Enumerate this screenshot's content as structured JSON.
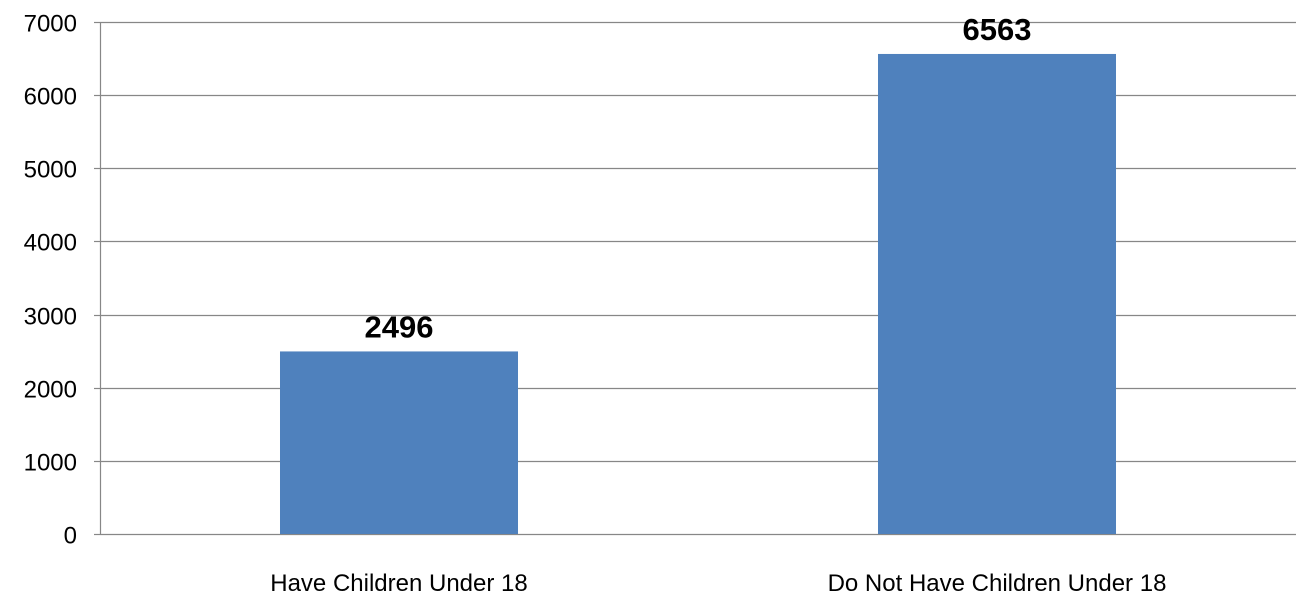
{
  "chart_data": {
    "type": "bar",
    "categories": [
      "Have Children Under 18",
      "Do Not Have Children Under 18"
    ],
    "values": [
      2496,
      6563
    ],
    "data_labels": [
      "2496",
      "6563"
    ],
    "yticks": [
      0,
      1000,
      2000,
      3000,
      4000,
      5000,
      6000,
      7000
    ],
    "ylim": [
      0,
      7000
    ],
    "title": "",
    "xlabel": "",
    "ylabel": "",
    "grid": true,
    "bar_color": "#4F81BD",
    "gridline_color": "#878787"
  }
}
